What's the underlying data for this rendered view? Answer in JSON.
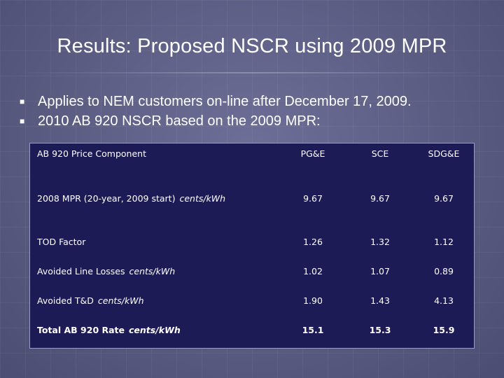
{
  "slide": {
    "title": "Results:  Proposed NSCR using 2009 MPR",
    "bullets": [
      {
        "icon": "square-bullet-icon",
        "text": "Applies to NEM customers on-line after December 17, 2009."
      },
      {
        "icon": "square-bullet-icon",
        "text": "2010 AB 920 NSCR based on the 2009 MPR:"
      }
    ]
  },
  "table": {
    "headers": [
      "AB 920 Price Component",
      "PG&E",
      "SCE",
      "SDG&E"
    ],
    "rows": [
      {
        "label": "2008 MPR (20-year, 2009 start)",
        "unit": "cents/kWh",
        "values": [
          "9.67",
          "9.67",
          "9.67"
        ]
      },
      {
        "label": "TOD Factor",
        "unit": "",
        "values": [
          "1.26",
          "1.32",
          "1.12"
        ]
      },
      {
        "label": "Avoided Line Losses",
        "unit": "cents/kWh",
        "values": [
          "1.02",
          "1.07",
          "0.89"
        ]
      },
      {
        "label": "Avoided T&D",
        "unit": "cents/kWh",
        "values": [
          "1.90",
          "1.43",
          "4.13"
        ]
      },
      {
        "label": "Total AB 920 Rate",
        "unit": "cents/kWh",
        "values": [
          "15.1",
          "15.3",
          "15.9"
        ]
      }
    ]
  },
  "colors": {
    "background": "#5d5f86",
    "table_background": "#1d1b55",
    "text": "#ffffff"
  }
}
